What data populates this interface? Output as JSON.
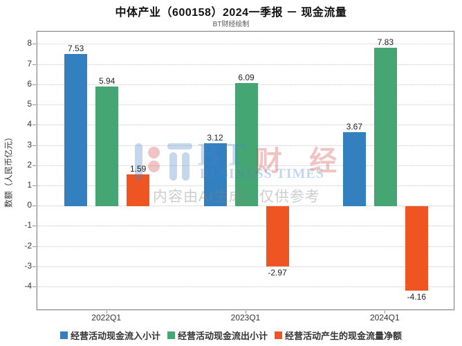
{
  "page": {
    "background": "#ffffff"
  },
  "chart_data": {
    "type": "bar",
    "title": "中体产业（600158）2024一季报 － 现金流量",
    "subtitle": "BT财经绘制",
    "ylabel": "数额（人民币亿元）",
    "xlabel": "",
    "categories": [
      "2022Q1",
      "2023Q1",
      "2024Q1"
    ],
    "series": [
      {
        "name": "经营活动现金流入小计",
        "color": "#3380c1",
        "values": [
          7.53,
          3.12,
          3.67
        ]
      },
      {
        "name": "经营活动现金流出小计",
        "color": "#45a673",
        "values": [
          5.94,
          6.09,
          7.83
        ]
      },
      {
        "name": "经营活动产生的现金流量净额",
        "color": "#ef5523",
        "values": [
          1.59,
          -2.97,
          -4.16
        ]
      }
    ],
    "y_axis": {
      "min": -5.16,
      "max": 8.63,
      "tick_labels": [
        8,
        7,
        6,
        5,
        4,
        3,
        2,
        1,
        0,
        -1,
        -2,
        -3,
        -4
      ]
    },
    "grid": true,
    "legend_position": "bottom",
    "value_label_decimals": 2
  },
  "watermark": {
    "logo_text": "BT",
    "brand_cn": "财 经",
    "brand_en": "BUSINESS TIMES",
    "disclaimer": "内容由AI生成，仅供参考",
    "accent_blue": "rgba(75,132,198,0.32)",
    "accent_pink": "rgba(210,60,60,0.30)",
    "gray_text": "rgba(130,130,130,0.40)"
  }
}
